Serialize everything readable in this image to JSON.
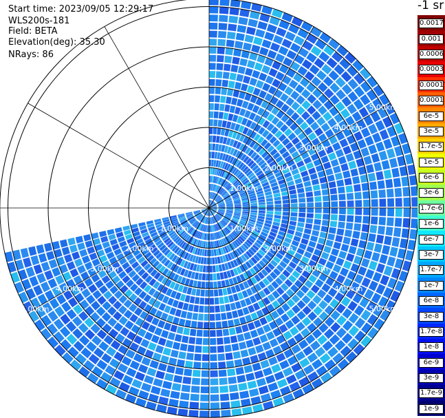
{
  "header": {
    "start_time": "Start time: 2023/09/05 12:29:17",
    "instrument": "WLS200s-181",
    "field": "Field: BETA",
    "elevation": "Elevation(deg): 35.30",
    "nrays": "NRays: 86"
  },
  "colorbar": {
    "unit": "-1 sr",
    "labels": [
      "0.0017",
      "0.001",
      "0.0006",
      "0.0003",
      "0.00017",
      "0.0001",
      "6e-5",
      "3e-5",
      "1.7e-5",
      "1e-5",
      "6e-6",
      "3e-6",
      "1.7e-6",
      "1e-6",
      "6e-7",
      "3e-7",
      "1.7e-7",
      "1e-7",
      "6e-8",
      "3e-8",
      "1.7e-8",
      "1e-8",
      "6e-9",
      "3e-9",
      "1.7e-9",
      "1e-9"
    ],
    "colors": [
      "#800000",
      "#a00000",
      "#c00000",
      "#e80000",
      "#ff3000",
      "#ff6000",
      "#ff8800",
      "#ffaa00",
      "#ffd000",
      "#f0ff00",
      "#c8ff20",
      "#a0ff50",
      "#70ffa0",
      "#40ffd0",
      "#10e8ff",
      "#00c8ff",
      "#00a8ff",
      "#0088ff",
      "#0068ff",
      "#0048ff",
      "#0028ff",
      "#0010f0",
      "#0000d0",
      "#0000b0",
      "#000090",
      "#000070"
    ]
  },
  "chart_data": {
    "type": "heatmap",
    "subtype": "polar PPI scan",
    "field": "BETA",
    "elevation_deg": 35.3,
    "nrays": 86,
    "range_rings_km": [
      1.0,
      2.0,
      3.0,
      4.0,
      5.0
    ],
    "ring_labels": [
      "1.00km",
      "2.00km",
      "3.00km",
      "4.00km",
      "5.00km"
    ],
    "max_range_km": 5.2,
    "azimuth_coverage_deg": [
      0,
      258
    ],
    "spoke_interval_deg": 30,
    "typical_value_range": [
      "1e-8",
      "6e-8"
    ],
    "scale": "log",
    "colors": {
      "dominant": "#1e78f0",
      "secondary": "#1e5ae6",
      "highlight": "#28bef0"
    }
  }
}
